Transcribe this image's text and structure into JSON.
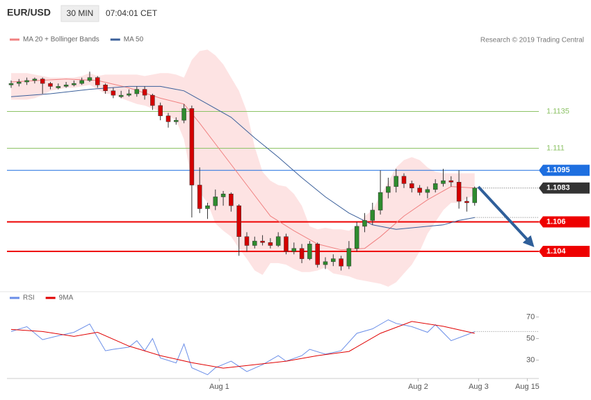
{
  "header": {
    "symbol": "EUR/USD",
    "interval": "30 MIN",
    "time": "07:04:01 CET",
    "credit": "Research © 2019 Trading Central"
  },
  "chart_data": [
    {
      "type": "candlestick",
      "xlim": [
        -0.53,
        67.17
      ],
      "ylim": [
        1.1015,
        1.118
      ],
      "up_color": "#2e8b2e",
      "down_color": "#d40000",
      "ohlc": [
        [
          1.1153,
          1.1156,
          1.1151,
          1.1154
        ],
        [
          1.1154,
          1.1157,
          1.1152,
          1.1155
        ],
        [
          1.1155,
          1.1158,
          1.1153,
          1.1156
        ],
        [
          1.1156,
          1.1158,
          1.1154,
          1.1157
        ],
        [
          1.1157,
          1.1158,
          1.1147,
          1.1154
        ],
        [
          1.1154,
          1.1155,
          1.115,
          1.1152
        ],
        [
          1.1151,
          1.1154,
          1.115,
          1.1152
        ],
        [
          1.1152,
          1.1155,
          1.1151,
          1.1153
        ],
        [
          1.1153,
          1.1156,
          1.1152,
          1.1154
        ],
        [
          1.1154,
          1.1158,
          1.1153,
          1.1156
        ],
        [
          1.1156,
          1.1162,
          1.1155,
          1.1158
        ],
        [
          1.1158,
          1.1159,
          1.1151,
          1.1153
        ],
        [
          1.1153,
          1.1154,
          1.1147,
          1.1149
        ],
        [
          1.1149,
          1.1151,
          1.1144,
          1.1146
        ],
        [
          1.1145,
          1.1149,
          1.1144,
          1.1146
        ],
        [
          1.1146,
          1.115,
          1.1145,
          1.1147
        ],
        [
          1.1147,
          1.1152,
          1.1145,
          1.115
        ],
        [
          1.115,
          1.1152,
          1.1143,
          1.1146
        ],
        [
          1.1146,
          1.1147,
          1.1136,
          1.1139
        ],
        [
          1.1139,
          1.1141,
          1.1129,
          1.1132
        ],
        [
          1.1132,
          1.1134,
          1.1124,
          1.1128
        ],
        [
          1.1128,
          1.1131,
          1.1126,
          1.1129
        ],
        [
          1.1129,
          1.114,
          1.1127,
          1.1137
        ],
        [
          1.1137,
          1.1139,
          1.1063,
          1.1085
        ],
        [
          1.1085,
          1.1097,
          1.1066,
          1.1069
        ],
        [
          1.1069,
          1.1073,
          1.1062,
          1.1071
        ],
        [
          1.1071,
          1.1082,
          1.1068,
          1.1077
        ],
        [
          1.1077,
          1.1081,
          1.1071,
          1.1079
        ],
        [
          1.1079,
          1.108,
          1.1067,
          1.1071
        ],
        [
          1.1071,
          1.1072,
          1.1037,
          1.105
        ],
        [
          1.105,
          1.1053,
          1.104,
          1.1044
        ],
        [
          1.1044,
          1.105,
          1.1042,
          1.1047
        ],
        [
          1.1047,
          1.1051,
          1.1044,
          1.1046
        ],
        [
          1.1046,
          1.1049,
          1.1042,
          1.1044
        ],
        [
          1.1044,
          1.1053,
          1.1043,
          1.105
        ],
        [
          1.105,
          1.1052,
          1.1038,
          1.104
        ],
        [
          1.104,
          1.1046,
          1.1038,
          1.1042
        ],
        [
          1.1042,
          1.1045,
          1.1032,
          1.1035
        ],
        [
          1.1035,
          1.1047,
          1.1034,
          1.1045
        ],
        [
          1.1045,
          1.1046,
          1.1029,
          1.1031
        ],
        [
          1.1031,
          1.1036,
          1.1028,
          1.1033
        ],
        [
          1.1033,
          1.1038,
          1.103,
          1.1035
        ],
        [
          1.1035,
          1.1037,
          1.1027,
          1.103
        ],
        [
          1.103,
          1.1047,
          1.1028,
          1.1042
        ],
        [
          1.1042,
          1.106,
          1.104,
          1.1057
        ],
        [
          1.1057,
          1.1066,
          1.1053,
          1.1061
        ],
        [
          1.1061,
          1.1073,
          1.1058,
          1.1068
        ],
        [
          1.1068,
          1.1095,
          1.1065,
          1.108
        ],
        [
          1.108,
          1.109,
          1.1076,
          1.1084
        ],
        [
          1.1084,
          1.1096,
          1.108,
          1.1091
        ],
        [
          1.1091,
          1.1093,
          1.1083,
          1.1086
        ],
        [
          1.1086,
          1.1088,
          1.108,
          1.1083
        ],
        [
          1.1083,
          1.1085,
          1.1078,
          1.108
        ],
        [
          1.108,
          1.1084,
          1.1076,
          1.1082
        ],
        [
          1.1082,
          1.1089,
          1.108,
          1.1086
        ],
        [
          1.1086,
          1.1096,
          1.1084,
          1.1088
        ],
        [
          1.1088,
          1.1091,
          1.1084,
          1.1087
        ],
        [
          1.1087,
          1.1095,
          1.1069,
          1.1074
        ],
        [
          1.1074,
          1.1077,
          1.1067,
          1.1073
        ],
        [
          1.1073,
          1.1084,
          1.1071,
          1.1083
        ]
      ],
      "bands": {
        "color": "#fde3e3",
        "upper": [
          1.1161,
          1.1161,
          1.1161,
          1.116,
          1.1159,
          1.1158,
          1.1158,
          1.1158,
          1.1158,
          1.1159,
          1.1161,
          1.1159,
          1.116,
          1.116,
          1.116,
          1.116,
          1.116,
          1.1159,
          1.116,
          1.1161,
          1.1161,
          1.116,
          1.1158,
          1.117,
          1.1176,
          1.1177,
          1.1173,
          1.1167,
          1.1158,
          1.1149,
          1.1135,
          1.1111,
          1.1094,
          1.1088,
          1.1085,
          1.1084,
          1.1079,
          1.1071,
          1.1057,
          1.1055,
          1.1056,
          1.1055,
          1.1055,
          1.1054,
          1.1057,
          1.1064,
          1.1068,
          1.1078,
          1.1087,
          1.1097,
          1.1102,
          1.1104,
          1.1102,
          1.1097,
          1.1094,
          1.1093,
          1.1093,
          1.1093,
          1.1093,
          1.1093
        ],
        "lower": [
          1.1143,
          1.1143,
          1.1143,
          1.1144,
          1.1146,
          1.1149,
          1.115,
          1.1151,
          1.1151,
          1.1152,
          1.1153,
          1.115,
          1.1147,
          1.1147,
          1.1144,
          1.1142,
          1.114,
          1.1139,
          1.1137,
          1.1135,
          1.1132,
          1.1129,
          1.1116,
          1.1088,
          1.108,
          1.1073,
          1.1059,
          1.1054,
          1.105,
          1.1042,
          1.1035,
          1.1027,
          1.1024,
          1.1032,
          1.1032,
          1.1031,
          1.1028,
          1.1026,
          1.1026,
          1.1027,
          1.1029,
          1.1025,
          1.1024,
          1.1023,
          1.1021,
          1.102,
          1.1019,
          1.1018,
          1.1016,
          1.1019,
          1.1025,
          1.1031,
          1.104,
          1.1052,
          1.106,
          1.1068,
          1.1073,
          1.1073,
          1.1076,
          1.1078
        ]
      },
      "series": [
        {
          "name": "MA 20 + Bollinger Bands",
          "color": "#f08080",
          "x": [
            0,
            7,
            11,
            15,
            19,
            22,
            24,
            27,
            30,
            33,
            36,
            39,
            42,
            45,
            47,
            50,
            53,
            56,
            59
          ],
          "values": [
            1.1155,
            1.1157,
            1.1156,
            1.1151,
            1.1144,
            1.114,
            1.1127,
            1.1106,
            1.1085,
            1.1064,
            1.1054,
            1.1045,
            1.1041,
            1.1042,
            1.105,
            1.1064,
            1.1075,
            1.1084,
            1.1083
          ]
        },
        {
          "name": "MA 50",
          "color": "#3a5f9a",
          "x": [
            0,
            5,
            10,
            15,
            19,
            22,
            25,
            28,
            31,
            34,
            37,
            40,
            43,
            46,
            49,
            53,
            55,
            57,
            59
          ],
          "values": [
            1.1145,
            1.1147,
            1.115,
            1.1152,
            1.1152,
            1.1149,
            1.114,
            1.1131,
            1.1117,
            1.1104,
            1.109,
            1.1077,
            1.1066,
            1.1058,
            1.1055,
            1.1057,
            1.1058,
            1.1061,
            1.1063
          ]
        }
      ],
      "levels": [
        {
          "value": 1.1135,
          "color": "#8cc265",
          "line": "solid",
          "box": false
        },
        {
          "value": 1.111,
          "color": "#8cc265",
          "line": "solid",
          "box": false
        },
        {
          "value": 1.1095,
          "color": "#1e6fe0",
          "line": "solid",
          "box": true
        },
        {
          "value": 1.1083,
          "color": "#333333",
          "line": "dotted",
          "box": true
        },
        {
          "value": 1.106,
          "color": "#ee0000",
          "line": "thick",
          "box": true
        },
        {
          "value": 1.104,
          "color": "#ee0000",
          "line": "thick",
          "box": true
        }
      ]
    },
    {
      "type": "line",
      "xlim": [
        -0.53,
        67.17
      ],
      "ylim": [
        13,
        87
      ],
      "yticks": [
        30,
        50,
        70
      ],
      "xticks": [
        {
          "value": 26.5,
          "label": "Aug 1"
        },
        {
          "value": 51.8,
          "label": "Aug 2"
        },
        {
          "value": 59.5,
          "label": "Aug 3"
        },
        {
          "value": 65.7,
          "label": "Aug 15"
        }
      ],
      "series": [
        {
          "name": "RSI",
          "color": "#6a8ee8",
          "x": [
            0,
            2,
            4,
            6,
            8,
            10,
            11,
            12,
            13,
            15,
            16,
            17,
            18,
            19,
            21,
            22,
            23,
            25,
            26,
            28,
            30,
            32,
            34,
            35,
            37,
            38,
            40,
            42,
            44,
            46,
            48,
            49,
            51,
            53,
            54,
            56,
            58,
            59
          ],
          "values": [
            56.5,
            61,
            49,
            52.6,
            55.8,
            63.5,
            51,
            38.7,
            40,
            42,
            48,
            38.7,
            50,
            32,
            27.4,
            45,
            22.9,
            16.5,
            22.9,
            29,
            19.4,
            25.8,
            34.2,
            29,
            34.2,
            40,
            35.5,
            38.7,
            54.8,
            59,
            67.4,
            64,
            61,
            55.8,
            62.9,
            48,
            53.5,
            56.5
          ]
        },
        {
          "name": "9MA",
          "color": "#e00000",
          "x": [
            0,
            4,
            8,
            11,
            15,
            19,
            23,
            27,
            31,
            35,
            39,
            43,
            47,
            51,
            55,
            59
          ],
          "values": [
            58.4,
            56.5,
            52,
            55.8,
            43,
            34.2,
            27.7,
            22.6,
            25.8,
            29,
            34.2,
            38,
            54.8,
            65.8,
            61.3,
            54.8
          ]
        }
      ]
    }
  ]
}
